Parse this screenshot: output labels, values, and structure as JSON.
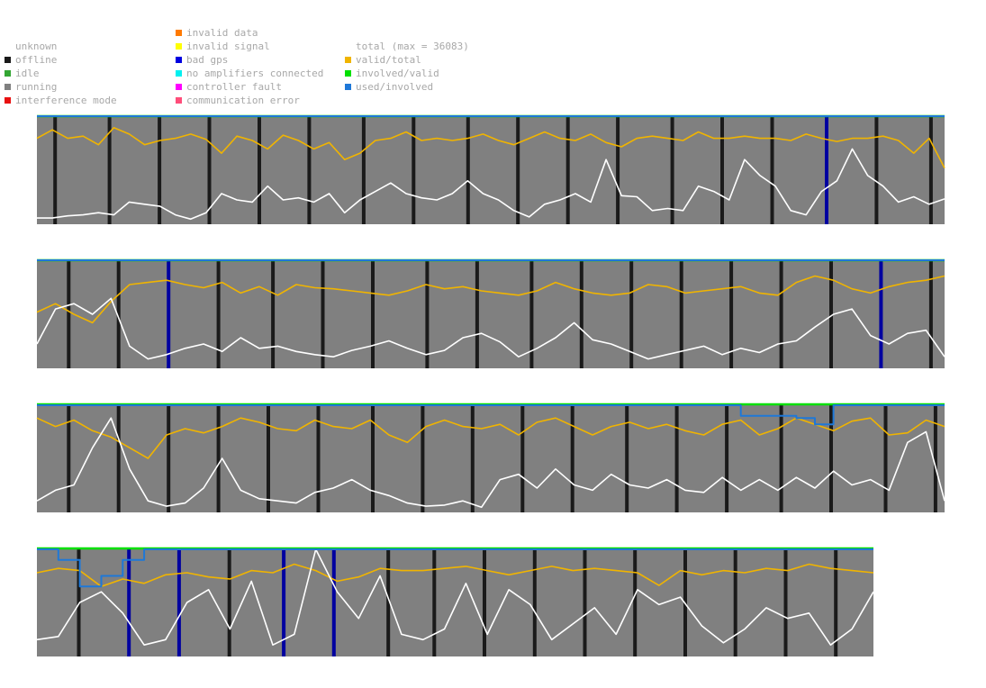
{
  "legend": {
    "states": [
      {
        "label": "unknown",
        "color": null
      },
      {
        "label": "offline",
        "color": "#1a1a1a"
      },
      {
        "label": "idle",
        "color": "#33a633"
      },
      {
        "label": "running",
        "color": "#808080"
      },
      {
        "label": "interference mode",
        "color": "#e81010"
      }
    ],
    "errors": [
      {
        "label": "invalid data",
        "color": "#ff7a00"
      },
      {
        "label": "invalid signal",
        "color": "#ffff00"
      },
      {
        "label": "bad gps",
        "color": "#0000e0"
      },
      {
        "label": "no amplifiers connected",
        "color": "#00f0f0"
      },
      {
        "label": "controller fault",
        "color": "#ff00ff"
      },
      {
        "label": "communication error",
        "color": "#ff4d7a"
      }
    ],
    "metrics": [
      {
        "label": "total (max = 36083)",
        "color": null
      },
      {
        "label": "valid/total",
        "color": "#f0b400"
      },
      {
        "label": "involved/valid",
        "color": "#00e000"
      },
      {
        "label": "used/involved",
        "color": "#1e78d8"
      }
    ]
  },
  "chart_data": [
    {
      "type": "line",
      "panel": 1,
      "offline_markers": [
        0.02,
        0.08,
        0.135,
        0.19,
        0.245,
        0.3,
        0.36,
        0.415,
        0.475,
        0.53,
        0.585,
        0.64,
        0.7,
        0.755,
        0.81,
        0.87,
        0.925,
        0.985
      ],
      "badgps_markers": [
        0.87
      ],
      "series": [
        {
          "key": "valid_total",
          "values": [
            0.8,
            0.88,
            0.8,
            0.82,
            0.74,
            0.9,
            0.84,
            0.74,
            0.78,
            0.8,
            0.84,
            0.79,
            0.66,
            0.82,
            0.78,
            0.7,
            0.83,
            0.78,
            0.7,
            0.76,
            0.6,
            0.66,
            0.78,
            0.8,
            0.86,
            0.78,
            0.8,
            0.78,
            0.8,
            0.84,
            0.78,
            0.74,
            0.8,
            0.86,
            0.8,
            0.78,
            0.84,
            0.76,
            0.72,
            0.8,
            0.82,
            0.8,
            0.78,
            0.86,
            0.8,
            0.8,
            0.82,
            0.8,
            0.8,
            0.78,
            0.84,
            0.8,
            0.77,
            0.8,
            0.8,
            0.82,
            0.78,
            0.66,
            0.8,
            0.52
          ]
        },
        {
          "key": "total",
          "values": [
            0.05,
            0.05,
            0.07,
            0.08,
            0.1,
            0.08,
            0.2,
            0.18,
            0.16,
            0.08,
            0.04,
            0.1,
            0.28,
            0.22,
            0.2,
            0.35,
            0.22,
            0.24,
            0.2,
            0.28,
            0.1,
            0.22,
            0.3,
            0.38,
            0.28,
            0.24,
            0.22,
            0.28,
            0.4,
            0.28,
            0.22,
            0.12,
            0.06,
            0.18,
            0.22,
            0.28,
            0.2,
            0.6,
            0.26,
            0.25,
            0.12,
            0.14,
            0.12,
            0.35,
            0.3,
            0.22,
            0.6,
            0.45,
            0.35,
            0.12,
            0.08,
            0.3,
            0.4,
            0.7,
            0.45,
            0.35,
            0.2,
            0.25,
            0.18,
            0.23
          ]
        },
        {
          "key": "involved_valid",
          "values": [
            1.0
          ]
        },
        {
          "key": "used_involved",
          "values": [
            1.0
          ]
        }
      ]
    },
    {
      "type": "line",
      "panel": 2,
      "offline_markers": [
        0.035,
        0.09,
        0.145,
        0.2,
        0.26,
        0.315,
        0.37,
        0.43,
        0.485,
        0.545,
        0.6,
        0.655,
        0.71,
        0.765,
        0.82,
        0.875,
        0.93,
        0.985
      ],
      "badgps_markers": [
        0.145,
        0.93
      ],
      "series": [
        {
          "key": "valid_total",
          "values": [
            0.52,
            0.6,
            0.5,
            0.42,
            0.62,
            0.78,
            0.8,
            0.82,
            0.78,
            0.75,
            0.8,
            0.7,
            0.76,
            0.68,
            0.78,
            0.75,
            0.74,
            0.72,
            0.7,
            0.68,
            0.72,
            0.78,
            0.74,
            0.76,
            0.72,
            0.7,
            0.68,
            0.72,
            0.8,
            0.74,
            0.7,
            0.68,
            0.7,
            0.78,
            0.76,
            0.7,
            0.72,
            0.74,
            0.76,
            0.7,
            0.68,
            0.8,
            0.86,
            0.82,
            0.74,
            0.7,
            0.76,
            0.8,
            0.82,
            0.86
          ]
        },
        {
          "key": "total",
          "values": [
            0.22,
            0.55,
            0.6,
            0.5,
            0.65,
            0.2,
            0.08,
            0.12,
            0.18,
            0.22,
            0.15,
            0.28,
            0.18,
            0.2,
            0.15,
            0.12,
            0.1,
            0.16,
            0.2,
            0.25,
            0.18,
            0.12,
            0.16,
            0.28,
            0.32,
            0.24,
            0.1,
            0.18,
            0.28,
            0.42,
            0.26,
            0.22,
            0.15,
            0.08,
            0.12,
            0.16,
            0.2,
            0.12,
            0.18,
            0.14,
            0.22,
            0.25,
            0.38,
            0.5,
            0.55,
            0.3,
            0.22,
            0.32,
            0.35,
            0.1
          ]
        },
        {
          "key": "involved_valid",
          "values": [
            1.0
          ]
        },
        {
          "key": "used_involved",
          "values": [
            1.0
          ]
        }
      ]
    },
    {
      "type": "line",
      "panel": 3,
      "offline_markers": [
        0.035,
        0.09,
        0.145,
        0.2,
        0.255,
        0.31,
        0.37,
        0.425,
        0.48,
        0.535,
        0.59,
        0.65,
        0.705,
        0.76,
        0.82,
        0.875,
        0.935,
        0.99
      ],
      "badgps_markers": [
        0.765
      ],
      "series": [
        {
          "key": "valid_total",
          "values": [
            0.88,
            0.8,
            0.86,
            0.76,
            0.7,
            0.6,
            0.5,
            0.72,
            0.78,
            0.74,
            0.8,
            0.88,
            0.84,
            0.78,
            0.76,
            0.86,
            0.8,
            0.78,
            0.86,
            0.72,
            0.65,
            0.8,
            0.86,
            0.8,
            0.78,
            0.82,
            0.72,
            0.84,
            0.88,
            0.8,
            0.72,
            0.8,
            0.84,
            0.78,
            0.82,
            0.76,
            0.72,
            0.82,
            0.86,
            0.72,
            0.78,
            0.88,
            0.82,
            0.76,
            0.85,
            0.88,
            0.72,
            0.74,
            0.86,
            0.8
          ]
        },
        {
          "key": "total",
          "values": [
            0.1,
            0.2,
            0.25,
            0.6,
            0.88,
            0.4,
            0.1,
            0.05,
            0.08,
            0.22,
            0.5,
            0.2,
            0.12,
            0.1,
            0.08,
            0.18,
            0.22,
            0.3,
            0.2,
            0.15,
            0.08,
            0.05,
            0.06,
            0.1,
            0.04,
            0.3,
            0.35,
            0.22,
            0.4,
            0.25,
            0.2,
            0.35,
            0.25,
            0.22,
            0.3,
            0.2,
            0.18,
            0.32,
            0.2,
            0.3,
            0.2,
            0.32,
            0.22,
            0.38,
            0.25,
            0.3,
            0.2,
            0.65,
            0.75,
            0.1
          ]
        },
        {
          "key": "involved_valid",
          "values": [
            1.0
          ]
        },
        {
          "key": "used_involved",
          "values": [
            1.0,
            1.0,
            1.0,
            1.0,
            1.0,
            1.0,
            1.0,
            1.0,
            1.0,
            1.0,
            1.0,
            1.0,
            1.0,
            1.0,
            1.0,
            1.0,
            1.0,
            1.0,
            1.0,
            1.0,
            1.0,
            1.0,
            1.0,
            1.0,
            1.0,
            1.0,
            1.0,
            1.0,
            1.0,
            1.0,
            1.0,
            1.0,
            1.0,
            1.0,
            1.0,
            1.0,
            1.0,
            1.0,
            0.9,
            0.9,
            0.9,
            0.88,
            0.82,
            1.0,
            1.0,
            1.0,
            1.0,
            1.0,
            1.0,
            1.0
          ]
        }
      ]
    },
    {
      "type": "line",
      "panel": 4,
      "offline_markers": [
        0.05,
        0.11,
        0.17,
        0.23,
        0.295,
        0.355,
        0.42,
        0.475,
        0.535,
        0.595,
        0.655,
        0.715,
        0.775,
        0.835,
        0.895,
        0.955
      ],
      "badgps_markers": [
        0.11,
        0.17,
        0.295,
        0.355
      ],
      "series": [
        {
          "key": "valid_total",
          "values": [
            0.78,
            0.82,
            0.8,
            0.65,
            0.72,
            0.68,
            0.76,
            0.78,
            0.74,
            0.72,
            0.8,
            0.78,
            0.86,
            0.8,
            0.7,
            0.74,
            0.82,
            0.8,
            0.8,
            0.82,
            0.84,
            0.8,
            0.76,
            0.8,
            0.84,
            0.8,
            0.82,
            0.8,
            0.78,
            0.66,
            0.8,
            0.76,
            0.8,
            0.78,
            0.82,
            0.8,
            0.86,
            0.82,
            0.8,
            0.78
          ]
        },
        {
          "key": "total",
          "values": [
            0.15,
            0.18,
            0.5,
            0.6,
            0.4,
            0.1,
            0.15,
            0.5,
            0.62,
            0.25,
            0.7,
            0.1,
            0.2,
            1.0,
            0.6,
            0.35,
            0.75,
            0.2,
            0.15,
            0.25,
            0.68,
            0.2,
            0.62,
            0.48,
            0.15,
            0.3,
            0.45,
            0.2,
            0.62,
            0.48,
            0.55,
            0.28,
            0.12,
            0.25,
            0.45,
            0.35,
            0.4,
            0.1,
            0.25,
            0.6
          ]
        },
        {
          "key": "involved_valid",
          "values": [
            1.0
          ]
        },
        {
          "key": "used_involved",
          "values": [
            1.0,
            0.9,
            0.65,
            0.75,
            0.9,
            1.0,
            1.0,
            1.0,
            1.0,
            1.0,
            1.0,
            1.0,
            1.0,
            1.0,
            1.0,
            1.0,
            1.0,
            1.0,
            1.0,
            1.0,
            1.0,
            1.0,
            1.0,
            1.0,
            1.0,
            1.0,
            1.0,
            1.0,
            1.0,
            1.0,
            1.0,
            1.0,
            1.0,
            1.0,
            1.0,
            1.0,
            1.0,
            1.0,
            1.0,
            1.0
          ]
        }
      ]
    }
  ]
}
